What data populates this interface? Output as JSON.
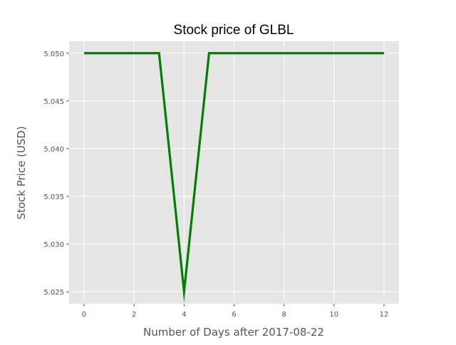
{
  "chart_data": {
    "type": "line",
    "title": "Stock price of GLBL",
    "xlabel": "Number of Days after 2017-08-22",
    "ylabel": "Stock Price (USD)",
    "x": [
      0,
      1,
      2,
      3,
      4,
      5,
      6,
      7,
      8,
      9,
      10,
      11,
      12
    ],
    "series": [
      {
        "values": [
          5.05,
          5.05,
          5.05,
          5.05,
          5.025,
          5.05,
          5.05,
          5.05,
          5.05,
          5.05,
          5.05,
          5.05,
          5.05
        ],
        "color": "#008000"
      }
    ],
    "xlim": [
      -0.6,
      12.6
    ],
    "ylim": [
      5.02375,
      5.05125
    ],
    "xticks": [
      0,
      2,
      4,
      6,
      8,
      10,
      12
    ],
    "yticks": [
      5.025,
      5.03,
      5.035,
      5.04,
      5.045,
      5.05
    ],
    "ytick_labels": [
      "5.025",
      "5.030",
      "5.035",
      "5.040",
      "5.045",
      "5.050"
    ],
    "grid": true,
    "background": "#e5e5e5",
    "grid_color": "#ffffff"
  }
}
